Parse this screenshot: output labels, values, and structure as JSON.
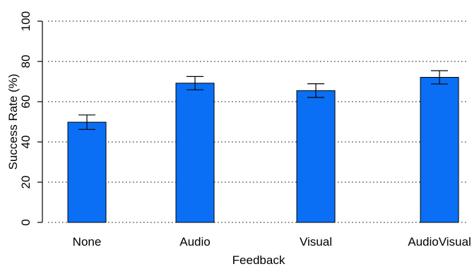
{
  "chart_data": {
    "type": "bar",
    "title": "",
    "xlabel": "Feedback",
    "ylabel": "Success Rate (%)",
    "categories": [
      "None",
      "Audio",
      "Visual",
      "AudioVisual"
    ],
    "values": [
      49.8,
      69.2,
      65.5,
      72.1
    ],
    "errors": [
      3.6,
      3.3,
      3.4,
      3.3
    ],
    "ylim": [
      0,
      100
    ],
    "yticks": [
      "0",
      "20",
      "40",
      "60",
      "80",
      "100"
    ],
    "grid": "horizontal dotted",
    "bar_color": "#0a6ff5"
  }
}
